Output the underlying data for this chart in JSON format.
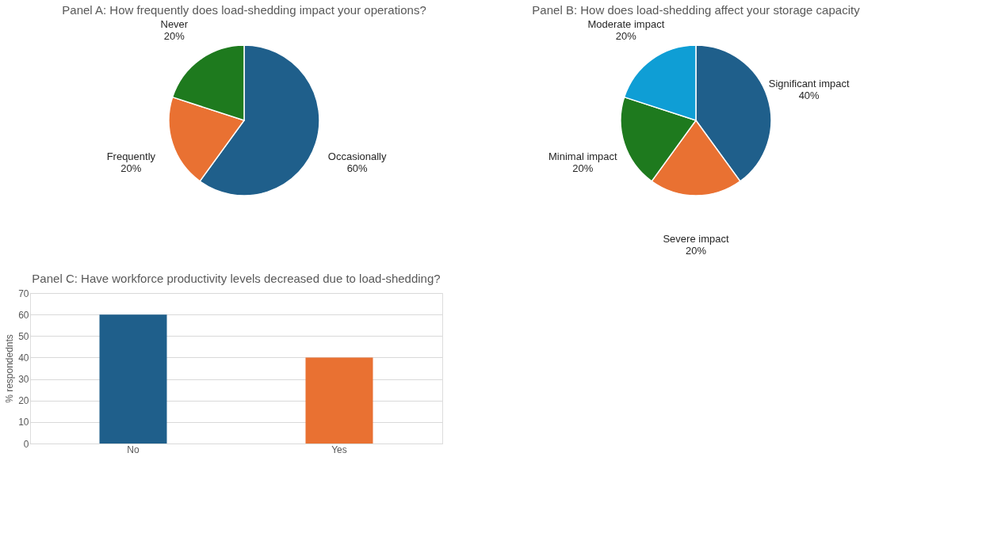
{
  "chart_data": [
    {
      "type": "pie",
      "title": "Panel A: How frequently does load-shedding impact your operations?",
      "categories": [
        "Occasionally",
        "Frequently",
        "Never"
      ],
      "values": [
        60,
        20,
        20
      ],
      "value_labels": [
        "60%",
        "20%",
        "20%"
      ],
      "colors": [
        "#1f5f8b",
        "#e97132",
        "#1e7a1e"
      ]
    },
    {
      "type": "pie",
      "title": "Panel B: How does load-shedding affect your storage capacity",
      "categories": [
        "Significant impact",
        "Severe impact",
        "Minimal impact",
        "Moderate impact"
      ],
      "values": [
        40,
        20,
        20,
        20
      ],
      "value_labels": [
        "40%",
        "20%",
        "20%",
        "20%"
      ],
      "colors": [
        "#1f5f8b",
        "#e97132",
        "#1e7a1e",
        "#0f9ed5"
      ]
    },
    {
      "type": "bar",
      "title": "Panel C: Have workforce productivity levels decreased due to load-shedding?",
      "categories": [
        "No",
        "Yes"
      ],
      "values": [
        60,
        40
      ],
      "colors": [
        "#1f5f8b",
        "#e97132"
      ],
      "ylabel": "% respondednts",
      "ylim": [
        0,
        70
      ],
      "yticks": [
        0,
        10,
        20,
        30,
        40,
        50,
        60,
        70
      ],
      "grid": "y"
    }
  ]
}
